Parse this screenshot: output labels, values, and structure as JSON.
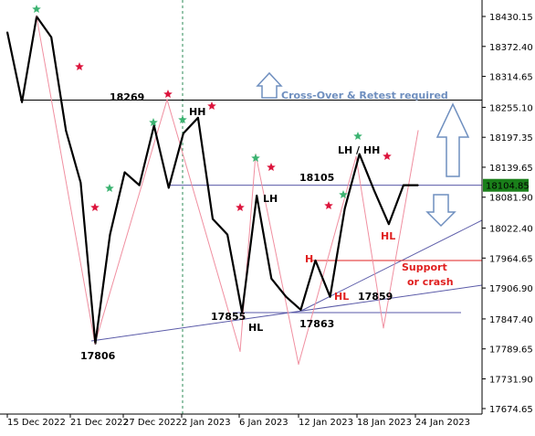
{
  "chart_data": {
    "type": "line",
    "title": "",
    "xlabel": "",
    "ylabel": "",
    "ylim": [
      17674.65,
      18470
    ],
    "colors": {
      "price": "#000000",
      "zigzag": "#f08fa0",
      "grid_bg": "#ffffff",
      "current_badge": "#1a7f1a",
      "blue_line": "#5a5aa8",
      "red_line": "#e02020",
      "arrow": "#6f8fbf",
      "green_star": "#3cb371",
      "red_star": "#dc143c",
      "dotted": "#2e8b57"
    },
    "x_ticks": [
      "15 Dec 2022",
      "21 Dec 2022",
      "27 Dec 2022",
      "2 Jan 2023",
      "6 Jan 2023",
      "12 Jan 2023",
      "18 Jan 2023",
      "24 Jan 2023"
    ],
    "y_ticks": [
      18430.15,
      18372.4,
      18314.65,
      18255.1,
      18197.35,
      18139.65,
      18081.9,
      18022.4,
      17964.65,
      17906.9,
      17847.4,
      17789.65,
      17731.9,
      17674.65
    ],
    "current_price": 18104.85,
    "series": [
      {
        "values": [
          18400,
          18265,
          18430,
          18390,
          18210,
          18110,
          17800,
          18010,
          18130,
          18105,
          18220,
          18100,
          18205,
          18235,
          18040,
          18010,
          17860,
          18085,
          17925,
          17890,
          17865,
          17960,
          17890,
          18060,
          18165,
          18095,
          18030,
          18105,
          18105
        ]
      },
      {
        "values": [
          18430,
          17800,
          18270,
          17785,
          18165,
          17760,
          18160,
          17830,
          18210
        ]
      }
    ],
    "levels": [
      {
        "value": 18269,
        "label": "18269",
        "color": "#000000"
      },
      {
        "value": 18105,
        "label": "18105",
        "color": "#5a5aa8"
      },
      {
        "value": 17960,
        "label": "",
        "color": "#e02020"
      }
    ],
    "annotations": {
      "cross_over": "Cross-Over & Retest required",
      "support": "Support",
      "or_crash": "or crash",
      "hh_left": "HH",
      "lh_left": "LH",
      "lh_hh_right": "LH / HH",
      "hl_right": "HL",
      "h_red": "H",
      "hl_red": "HL",
      "hl_bottom": "HL",
      "low_17806": "17806",
      "low_17855": "17855",
      "low_17863": "17863",
      "val_17859": "17859"
    }
  }
}
